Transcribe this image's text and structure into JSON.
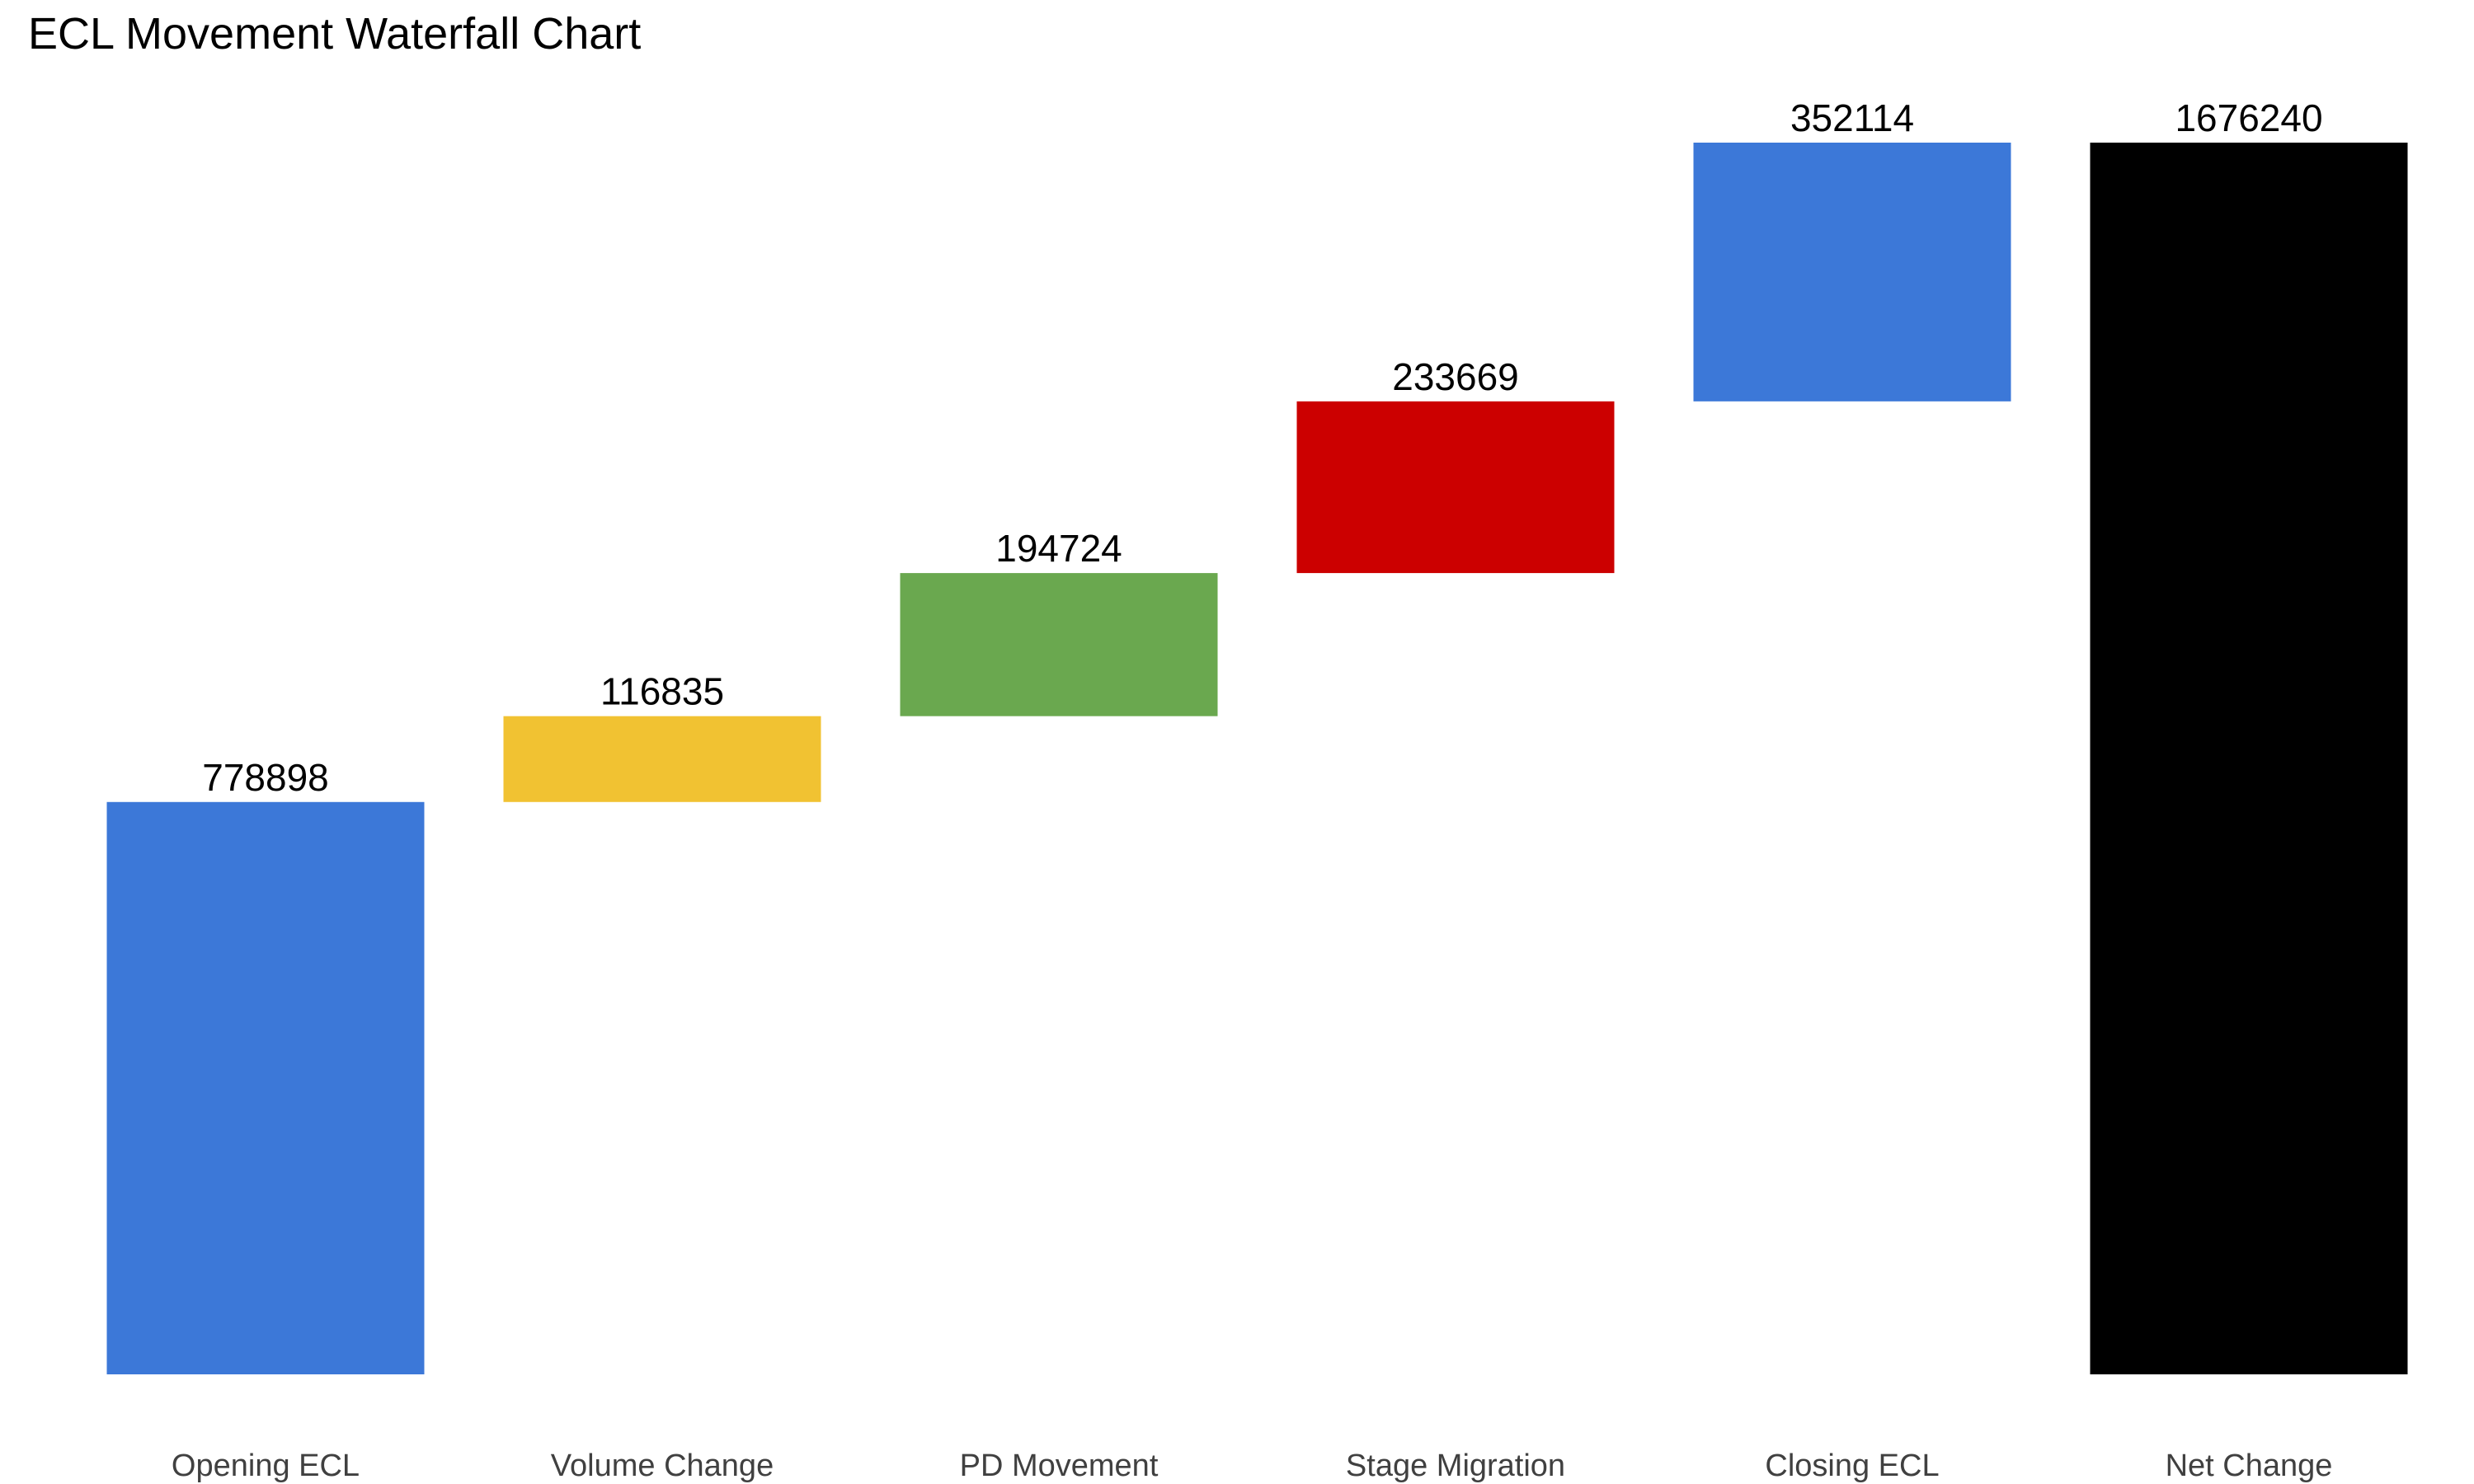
{
  "chart_data": {
    "type": "bar",
    "subtype": "waterfall",
    "title": "ECL Movement Waterfall Chart",
    "xlabel": "",
    "ylabel": "",
    "grid": false,
    "legend": "none",
    "categories": [
      "Opening ECL",
      "Volume Change",
      "PD Movement",
      "Stage Migration",
      "Closing ECL",
      "Net Change"
    ],
    "values": [
      778898,
      116835,
      194724,
      233669,
      352114,
      1676240
    ],
    "data_labels": [
      "778898",
      "116835",
      "194724",
      "233669",
      "352114",
      "1676240"
    ],
    "bar_kind": [
      "start",
      "step",
      "step",
      "step",
      "step",
      "total"
    ],
    "colors": [
      "#3c78d8",
      "#f1c232",
      "#6aa84f",
      "#cc0000",
      "#3c78d8",
      "#000000"
    ],
    "ylim": [
      0,
      1676240
    ]
  }
}
